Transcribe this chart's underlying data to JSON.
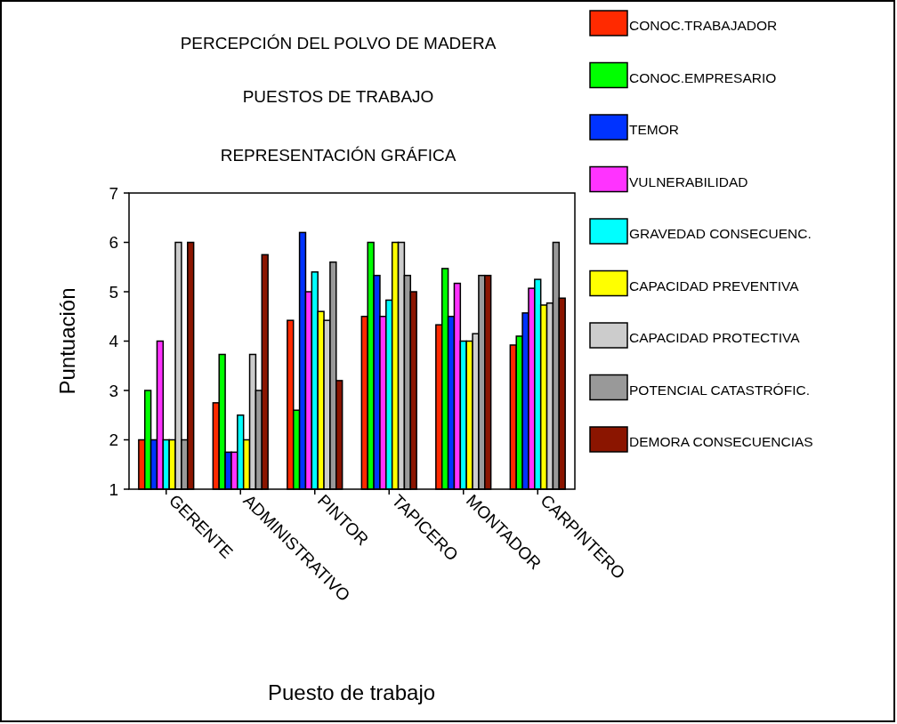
{
  "chart_data": {
    "type": "bar",
    "title": "PERCEPCIÓN DEL POLVO DE MADERA",
    "subtitle": "PUESTOS DE TRABAJO\nREPRESENTACIÓN GRÁFICA",
    "xlabel": "Puesto de trabajo",
    "ylabel": "Puntuación",
    "categories": [
      "GERENTE",
      "ADMINISTRATIVO",
      "PINTOR",
      "TAPICERO",
      "MONTADOR",
      "CARPINTERO"
    ],
    "series": [
      {
        "name": "CONOC.TRABAJADOR",
        "color": "#ff2a00",
        "values": [
          2,
          2.75,
          4.42,
          4.5,
          4.33,
          3.92
        ]
      },
      {
        "name": "CONOC.EMPRESARIO",
        "color": "#00ff00",
        "values": [
          3,
          3.73,
          2.6,
          6,
          5.47,
          4.1
        ]
      },
      {
        "name": "TEMOR",
        "color": "#0033ff",
        "values": [
          2,
          1.75,
          6.2,
          5.33,
          4.5,
          4.57
        ]
      },
      {
        "name": "VULNERABILIDAD",
        "color": "#ff33ff",
        "values": [
          4,
          1.75,
          5,
          4.5,
          5.17,
          5.07
        ]
      },
      {
        "name": "GRAVEDAD CONSECUENC.",
        "color": "#00ffff",
        "values": [
          2,
          2.5,
          5.4,
          4.83,
          4,
          5.25
        ]
      },
      {
        "name": "CAPACIDAD PREVENTIVA",
        "color": "#ffff00",
        "values": [
          2,
          2,
          4.6,
          6,
          4,
          4.73
        ]
      },
      {
        "name": "CAPACIDAD PROTECTIVA",
        "color": "#cccccc",
        "values": [
          6,
          3.73,
          4.42,
          6,
          4.15,
          4.77
        ]
      },
      {
        "name": "POTENCIAL CATASTRÓFIC.",
        "color": "#999999",
        "values": [
          2,
          3,
          5.6,
          5.33,
          5.33,
          6
        ]
      },
      {
        "name": "DEMORA CONSECUENCIAS",
        "color": "#8b1500",
        "values": [
          6,
          5.75,
          3.2,
          5,
          5.33,
          4.87
        ]
      }
    ],
    "ylim": [
      1,
      7
    ],
    "yticks": [
      1,
      2,
      3,
      4,
      5,
      6,
      7
    ],
    "grid": false,
    "legend": "right"
  }
}
